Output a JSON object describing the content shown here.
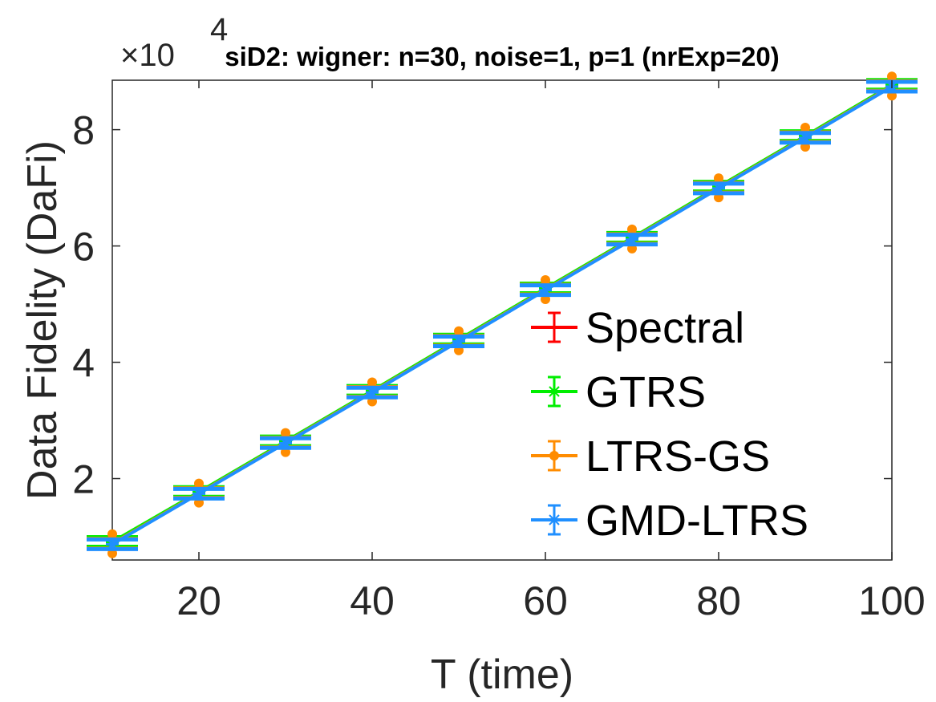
{
  "chart_data": {
    "type": "line",
    "title": "siD2: wigner: n=30, noise=1, p=1 (nrExp=20)",
    "xlabel": "T (time)",
    "ylabel": "Data Fidelity (DaFi)",
    "y_exponent_label": "×10",
    "y_exponent_power": "4",
    "xlim": [
      10,
      100
    ],
    "ylim": [
      6000,
      88500
    ],
    "y_scale_factor": 10000,
    "x_ticks": [
      20,
      40,
      60,
      80,
      100
    ],
    "y_ticks": [
      20000,
      40000,
      60000,
      80000
    ],
    "x_tick_labels": [
      "20",
      "40",
      "60",
      "80",
      "100"
    ],
    "y_tick_labels": [
      "2",
      "4",
      "6",
      "8"
    ],
    "grid": false,
    "legend_position": "bottom-right",
    "x": [
      10,
      20,
      30,
      40,
      50,
      60,
      70,
      80,
      90,
      100
    ],
    "series": [
      {
        "name": "Spectral",
        "color": "#ff0000",
        "marker": "none",
        "values": [
          9000,
          17600,
          26300,
          35000,
          43800,
          52600,
          61300,
          70100,
          78800,
          87600
        ]
      },
      {
        "name": "GTRS",
        "color": "#00ee00",
        "marker": "star",
        "values": [
          9100,
          17700,
          26400,
          35100,
          43900,
          52700,
          61400,
          70200,
          78900,
          87700
        ]
      },
      {
        "name": "LTRS-GS",
        "color": "#ff8c00",
        "marker": "dot",
        "values": [
          8800,
          17500,
          26200,
          34900,
          43700,
          52500,
          61200,
          70000,
          78700,
          87500
        ]
      },
      {
        "name": "GMD-LTRS",
        "color": "#1f8fff",
        "marker": "star",
        "values": [
          8700,
          17400,
          26100,
          34800,
          43600,
          52400,
          61100,
          69900,
          78600,
          87400
        ]
      }
    ]
  }
}
